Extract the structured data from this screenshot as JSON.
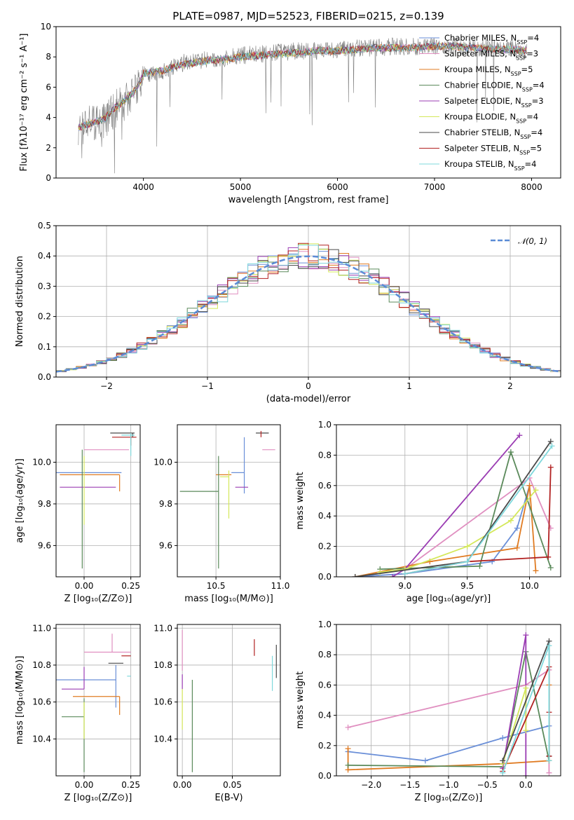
{
  "title": "PLATE=0987, MJD=52523, FIBERID=0215, z=0.139",
  "palette": {
    "Chabrier MILES": "#6a8fd8",
    "Salpeter MILES": "#e08fc0",
    "Kroupa MILES": "#e07b22",
    "Chabrier ELODIE": "#5b8a5b",
    "Salpeter ELODIE": "#9b3db3",
    "Kroupa ELODIE": "#d4e85a",
    "Chabrier STELIB": "#4a4a4a",
    "Salpeter STELIB": "#b22222",
    "Kroupa STELIB": "#7fd8dc"
  },
  "legend": [
    {
      "model": "Chabrier MILES",
      "text": "Chabrier MILES, N",
      "sub": "SSP",
      "suffix": "=4"
    },
    {
      "model": "Salpeter MILES",
      "text": "Salpeter MILES, N",
      "sub": "SSP",
      "suffix": "=3"
    },
    {
      "model": "Kroupa MILES",
      "text": "Kroupa MILES, N",
      "sub": "SSP",
      "suffix": "=5"
    },
    {
      "model": "Chabrier ELODIE",
      "text": "Chabrier ELODIE, N",
      "sub": "SSP",
      "suffix": "=4"
    },
    {
      "model": "Salpeter ELODIE",
      "text": "Salpeter ELODIE, N",
      "sub": "SSP",
      "suffix": "=3"
    },
    {
      "model": "Kroupa ELODIE",
      "text": "Kroupa ELODIE, N",
      "sub": "SSP",
      "suffix": "=4"
    },
    {
      "model": "Chabrier STELIB",
      "text": "Chabrier STELIB, N",
      "sub": "SSP",
      "suffix": "=4"
    },
    {
      "model": "Salpeter STELIB",
      "text": "Salpeter STELIB, N",
      "sub": "SSP",
      "suffix": "=5"
    },
    {
      "model": "Kroupa STELIB",
      "text": "Kroupa STELIB, N",
      "sub": "SSP",
      "suffix": "=4"
    }
  ],
  "chart_data": [
    {
      "id": "spectrum",
      "type": "line",
      "xlabel": "wavelength [Angstrom, rest frame]",
      "ylabel": "Flux [fλ10⁻¹⁷ erg cm⁻² s⁻¹ A⁻¹]",
      "xlim": [
        3100,
        8300
      ],
      "ylim": [
        0,
        10
      ],
      "xticks": [
        4000,
        5000,
        6000,
        7000,
        8000
      ],
      "yticks": [
        0,
        2,
        4,
        6,
        8,
        10
      ],
      "grid": false,
      "legend_position": "right",
      "data_wavelength": [
        3330,
        3400,
        3500,
        3600,
        3700,
        3800,
        3900,
        3950,
        4000,
        4100,
        4200,
        4300,
        4400,
        4500,
        4600,
        4700,
        4800,
        4900,
        5000,
        5200,
        5400,
        5600,
        5800,
        6000,
        6200,
        6400,
        6600,
        6800,
        7000,
        7200,
        7400,
        7600,
        7800,
        7950
      ],
      "data_flux": [
        3.3,
        3.6,
        3.7,
        3.9,
        4.5,
        5.0,
        5.6,
        6.0,
        6.8,
        7.0,
        7.1,
        7.3,
        7.6,
        7.7,
        7.8,
        7.8,
        7.9,
        8.0,
        8.1,
        8.2,
        8.3,
        8.4,
        8.4,
        8.5,
        8.6,
        8.6,
        8.7,
        8.7,
        8.7,
        8.7,
        8.6,
        8.6,
        8.5,
        8.4
      ],
      "model_flux": [
        3.3,
        3.5,
        3.7,
        3.9,
        4.6,
        5.1,
        5.7,
        6.1,
        6.9,
        7.0,
        7.1,
        7.3,
        7.5,
        7.6,
        7.7,
        7.8,
        7.8,
        7.9,
        8.0,
        8.1,
        8.2,
        8.3,
        8.4,
        8.4,
        8.5,
        8.6,
        8.6,
        8.6,
        8.7,
        8.7,
        8.6,
        8.5,
        8.5,
        8.4
      ]
    },
    {
      "id": "residuals",
      "type": "histogram",
      "xlabel": "(data-model)/error",
      "ylabel": "Normed distribution",
      "xlim": [
        -2.5,
        2.5
      ],
      "ylim": [
        0,
        0.5
      ],
      "xticks": [
        -2,
        -1,
        0,
        1,
        2
      ],
      "yticks": [
        0.0,
        0.1,
        0.2,
        0.3,
        0.4,
        0.5
      ],
      "grid": true,
      "legend_position": "top-right",
      "reference_label": "𝒩(0, 1)",
      "reference_mean": 0,
      "reference_sigma": 1,
      "bin_width": 0.1
    },
    {
      "id": "z-vs-age",
      "type": "errorbar",
      "xlabel": "Z [log₁₀(Z/Z⊙)]",
      "ylabel": "age  [log₁₀(age/yr)]",
      "xlim": [
        -0.15,
        0.3
      ],
      "ylim": [
        9.45,
        10.18
      ],
      "xticks": [
        0.0,
        0.25
      ],
      "yticks": [
        9.6,
        9.8,
        10.0
      ],
      "grid": true,
      "points": [
        {
          "model": "Chabrier MILES",
          "x": 0.2,
          "xerr": [
            0.35,
            0.0
          ],
          "y": 9.95,
          "yerr": [
            0.0,
            0.0
          ]
        },
        {
          "model": "Salpeter MILES",
          "x": 0.12,
          "xerr": [
            0.12,
            0.12
          ],
          "y": 10.06,
          "yerr": [
            0.0,
            0.0
          ]
        },
        {
          "model": "Kroupa MILES",
          "x": 0.19,
          "xerr": [
            0.32,
            0.0
          ],
          "y": 9.94,
          "yerr": [
            0.08,
            0.0
          ]
        },
        {
          "model": "Chabrier ELODIE",
          "x": -0.01,
          "xerr": [
            0.0,
            0.0
          ],
          "y": 9.86,
          "yerr": [
            0.37,
            0.2
          ]
        },
        {
          "model": "Salpeter ELODIE",
          "x": 0.17,
          "xerr": [
            0.3,
            0.0
          ],
          "y": 9.88,
          "yerr": [
            0.0,
            0.0
          ]
        },
        {
          "model": "Kroupa ELODIE",
          "x": 0.0,
          "xerr": [
            0.0,
            0.0
          ],
          "y": 9.93,
          "yerr": [
            0.23,
            0.1
          ]
        },
        {
          "model": "Chabrier STELIB",
          "x": 0.26,
          "xerr": [
            0.12,
            0.01
          ],
          "y": 10.14,
          "yerr": [
            0.02,
            0.0
          ]
        },
        {
          "model": "Salpeter STELIB",
          "x": 0.25,
          "xerr": [
            0.1,
            0.03
          ],
          "y": 10.12,
          "yerr": [
            0.04,
            0.02
          ]
        },
        {
          "model": "Kroupa STELIB",
          "x": 0.25,
          "xerr": [
            0.05,
            0.02
          ],
          "y": 10.13,
          "yerr": [
            0.1,
            0.01
          ]
        }
      ]
    },
    {
      "id": "mass-vs-age",
      "type": "errorbar",
      "xlabel": "mass [log₁₀(M/M⊙)]",
      "xlim": [
        10.2,
        11.0
      ],
      "ylim": [
        9.45,
        10.18
      ],
      "xticks": [
        10.5,
        11.0
      ],
      "yticks": [
        9.6,
        9.8,
        10.0
      ],
      "grid": true,
      "points": [
        {
          "model": "Chabrier MILES",
          "x": 10.72,
          "xerr": [
            0.1,
            0.0
          ],
          "y": 9.95,
          "yerr": [
            0.1,
            0.17
          ]
        },
        {
          "model": "Salpeter MILES",
          "x": 10.86,
          "xerr": [
            0.0,
            0.1
          ],
          "y": 10.06,
          "yerr": [
            0.0,
            0.0
          ]
        },
        {
          "model": "Kroupa MILES",
          "x": 10.62,
          "xerr": [
            0.12,
            0.0
          ],
          "y": 9.94,
          "yerr": [
            0.0,
            0.0
          ]
        },
        {
          "model": "Chabrier ELODIE",
          "x": 10.52,
          "xerr": [
            0.3,
            0.0
          ],
          "y": 9.86,
          "yerr": [
            0.37,
            0.17
          ]
        },
        {
          "model": "Salpeter ELODIE",
          "x": 10.65,
          "xerr": [
            0.0,
            0.1
          ],
          "y": 9.88,
          "yerr": [
            0.0,
            0.0
          ]
        },
        {
          "model": "Kroupa ELODIE",
          "x": 10.6,
          "xerr": [
            0.07,
            0.0
          ],
          "y": 9.93,
          "yerr": [
            0.2,
            0.03
          ]
        },
        {
          "model": "Chabrier STELIB",
          "x": 10.81,
          "xerr": [
            0.0,
            0.1
          ],
          "y": 10.14,
          "yerr": [
            0.0,
            0.0
          ]
        },
        {
          "model": "Salpeter STELIB",
          "x": 10.85,
          "xerr": [
            0.0,
            0.0
          ],
          "y": 10.12,
          "yerr": [
            0.0,
            0.03
          ]
        },
        {
          "model": "Kroupa STELIB",
          "x": 10.74,
          "xerr": [
            0.0,
            0.0
          ],
          "y": 10.13,
          "yerr": [
            0.0,
            0.0
          ]
        }
      ]
    },
    {
      "id": "age-vs-weight",
      "type": "line",
      "xlabel": "age  [log₁₀(age/yr)]",
      "ylabel": "mass weight",
      "xlim": [
        8.45,
        10.25
      ],
      "ylim": [
        0,
        1
      ],
      "xticks": [
        9.0,
        9.5,
        10.0
      ],
      "yticks": [
        0.0,
        0.2,
        0.4,
        0.6,
        0.8,
        1.0
      ],
      "grid": true,
      "series": [
        {
          "model": "Chabrier MILES",
          "x": [
            8.6,
            9.0,
            9.7,
            9.9,
            10.0
          ],
          "y": [
            0.0,
            0.02,
            0.1,
            0.32,
            0.6
          ]
        },
        {
          "model": "Salpeter MILES",
          "x": [
            9.0,
            10.0,
            10.17
          ],
          "y": [
            0.05,
            0.65,
            0.32
          ]
        },
        {
          "model": "Kroupa MILES",
          "x": [
            8.6,
            9.2,
            9.9,
            10.0,
            10.05
          ],
          "y": [
            0.0,
            0.1,
            0.19,
            0.6,
            0.04
          ]
        },
        {
          "model": "Chabrier ELODIE",
          "x": [
            8.8,
            9.6,
            9.85,
            10.17
          ],
          "y": [
            0.05,
            0.07,
            0.82,
            0.06
          ]
        },
        {
          "model": "Salpeter ELODIE",
          "x": [
            8.9,
            9.0,
            9.92
          ],
          "y": [
            0.0,
            0.05,
            0.93
          ]
        },
        {
          "model": "Kroupa ELODIE",
          "x": [
            8.8,
            9.0,
            9.5,
            9.85,
            10.05
          ],
          "y": [
            0.03,
            0.05,
            0.2,
            0.37,
            0.57
          ]
        },
        {
          "model": "Chabrier STELIB",
          "x": [
            8.6,
            9.5,
            10.17
          ],
          "y": [
            0.0,
            0.1,
            0.89
          ]
        },
        {
          "model": "Salpeter STELIB",
          "x": [
            9.0,
            9.5,
            10.15,
            10.17
          ],
          "y": [
            0.02,
            0.1,
            0.13,
            0.72
          ]
        },
        {
          "model": "Kroupa STELIB",
          "x": [
            9.0,
            9.5,
            10.18
          ],
          "y": [
            0.02,
            0.1,
            0.86
          ]
        }
      ]
    },
    {
      "id": "z-vs-mass",
      "type": "errorbar",
      "xlabel": "Z [log₁₀(Z/Z⊙)]",
      "ylabel": "mass [log₁₀(M/M⊙)]",
      "xlim": [
        -0.15,
        0.3
      ],
      "ylim": [
        10.2,
        11.02
      ],
      "xticks": [
        0.0,
        0.25
      ],
      "yticks": [
        10.4,
        10.6,
        10.8,
        11.0
      ],
      "grid": true,
      "points": [
        {
          "model": "Chabrier MILES",
          "x": 0.17,
          "xerr": [
            0.32,
            0.0
          ],
          "y": 10.72,
          "yerr": [
            0.15,
            0.08
          ]
        },
        {
          "model": "Salpeter MILES",
          "x": 0.15,
          "xerr": [
            0.15,
            0.1
          ],
          "y": 10.87,
          "yerr": [
            0.0,
            0.1
          ]
        },
        {
          "model": "Kroupa MILES",
          "x": 0.19,
          "xerr": [
            0.25,
            0.0
          ],
          "y": 10.63,
          "yerr": [
            0.1,
            0.0
          ]
        },
        {
          "model": "Chabrier ELODIE",
          "x": 0.0,
          "xerr": [
            0.12,
            0.0
          ],
          "y": 10.52,
          "yerr": [
            0.3,
            0.1
          ]
        },
        {
          "model": "Salpeter ELODIE",
          "x": 0.0,
          "xerr": [
            0.12,
            0.0
          ],
          "y": 10.67,
          "yerr": [
            0.0,
            0.12
          ]
        },
        {
          "model": "Kroupa ELODIE",
          "x": 0.0,
          "xerr": [
            0.0,
            0.0
          ],
          "y": 10.6,
          "yerr": [
            0.2,
            0.0
          ]
        },
        {
          "model": "Chabrier STELIB",
          "x": 0.21,
          "xerr": [
            0.08,
            0.0
          ],
          "y": 10.81,
          "yerr": [
            0.0,
            0.0
          ]
        },
        {
          "model": "Salpeter STELIB",
          "x": 0.25,
          "xerr": [
            0.05,
            0.0
          ],
          "y": 10.85,
          "yerr": [
            0.0,
            0.0
          ]
        },
        {
          "model": "Kroupa STELIB",
          "x": 0.25,
          "xerr": [
            0.02,
            0.0
          ],
          "y": 10.74,
          "yerr": [
            0.0,
            0.0
          ]
        }
      ]
    },
    {
      "id": "ebv-vs-mass",
      "type": "errorbar",
      "xlabel": "E(B-V)",
      "xlim": [
        -0.005,
        0.098
      ],
      "ylim": [
        10.2,
        11.02
      ],
      "xticks": [
        0.0,
        0.05
      ],
      "yticks": [
        10.4,
        10.6,
        10.8,
        11.0
      ],
      "grid": true,
      "points": [
        {
          "model": "Salpeter MILES",
          "x": 0.0,
          "xerr": [
            0.0,
            0.0
          ],
          "y": 10.87,
          "yerr": [
            0.1,
            0.12
          ]
        },
        {
          "model": "Salpeter ELODIE",
          "x": 0.0,
          "xerr": [
            0.0,
            0.0
          ],
          "y": 10.75,
          "yerr": [
            0.08,
            0.0
          ]
        },
        {
          "model": "Kroupa ELODIE",
          "x": 0.0,
          "xerr": [
            0.0,
            0.0
          ],
          "y": 10.55,
          "yerr": [
            0.1,
            0.12
          ]
        },
        {
          "model": "Chabrier ELODIE",
          "x": 0.01,
          "xerr": [
            0.0,
            0.0
          ],
          "y": 10.47,
          "yerr": [
            0.25,
            0.25
          ]
        },
        {
          "model": "Salpeter STELIB",
          "x": 0.072,
          "xerr": [
            0.0,
            0.0
          ],
          "y": 10.85,
          "yerr": [
            0.0,
            0.09
          ]
        },
        {
          "model": "Kroupa STELIB",
          "x": 0.09,
          "xerr": [
            0.0,
            0.0
          ],
          "y": 10.76,
          "yerr": [
            0.1,
            0.09
          ]
        },
        {
          "model": "Chabrier STELIB",
          "x": 0.094,
          "xerr": [
            0.0,
            0.0
          ],
          "y": 10.82,
          "yerr": [
            0.09,
            0.09
          ]
        }
      ]
    },
    {
      "id": "z-vs-weight",
      "type": "line",
      "xlabel": "Z [log₁₀(Z/Z⊙)]",
      "ylabel": "mass weight",
      "xlim": [
        -2.45,
        0.45
      ],
      "ylim": [
        0,
        1
      ],
      "xticks": [
        -2.0,
        -1.5,
        -1.0,
        -0.5,
        0.0
      ],
      "yticks": [
        0.0,
        0.2,
        0.4,
        0.6,
        0.8,
        1.0
      ],
      "grid": true,
      "series": [
        {
          "model": "Chabrier MILES",
          "x": [
            -2.3,
            -1.3,
            -0.3,
            0.3
          ],
          "y": [
            0.16,
            0.1,
            0.25,
            0.33
          ]
        },
        {
          "model": "Salpeter MILES",
          "x": [
            -2.3,
            0.0,
            0.3,
            0.3
          ],
          "y": [
            0.32,
            0.6,
            0.7,
            0.02
          ]
        },
        {
          "model": "Kroupa MILES",
          "x": [
            -2.3,
            -2.3,
            -0.3,
            0.3,
            0.3
          ],
          "y": [
            0.18,
            0.04,
            0.08,
            0.1,
            0.6
          ]
        },
        {
          "model": "Chabrier ELODIE",
          "x": [
            -2.3,
            -0.3,
            0.0,
            0.3
          ],
          "y": [
            0.07,
            0.06,
            0.82,
            0.1
          ]
        },
        {
          "model": "Salpeter ELODIE",
          "x": [
            -0.3,
            0.0,
            0.0
          ],
          "y": [
            0.05,
            0.93,
            0.0
          ]
        },
        {
          "model": "Kroupa ELODIE",
          "x": [
            -0.3,
            0.0,
            0.0
          ],
          "y": [
            0.08,
            0.58,
            0.3
          ]
        },
        {
          "model": "Chabrier STELIB",
          "x": [
            -0.3,
            0.3,
            0.3
          ],
          "y": [
            0.1,
            0.89,
            0.13
          ]
        },
        {
          "model": "Salpeter STELIB",
          "x": [
            -0.3,
            0.3,
            0.3,
            0.3
          ],
          "y": [
            0.03,
            0.72,
            0.42,
            0.13
          ]
        },
        {
          "model": "Kroupa STELIB",
          "x": [
            -0.3,
            0.3,
            0.3
          ],
          "y": [
            0.02,
            0.86,
            0.1
          ]
        }
      ]
    }
  ]
}
